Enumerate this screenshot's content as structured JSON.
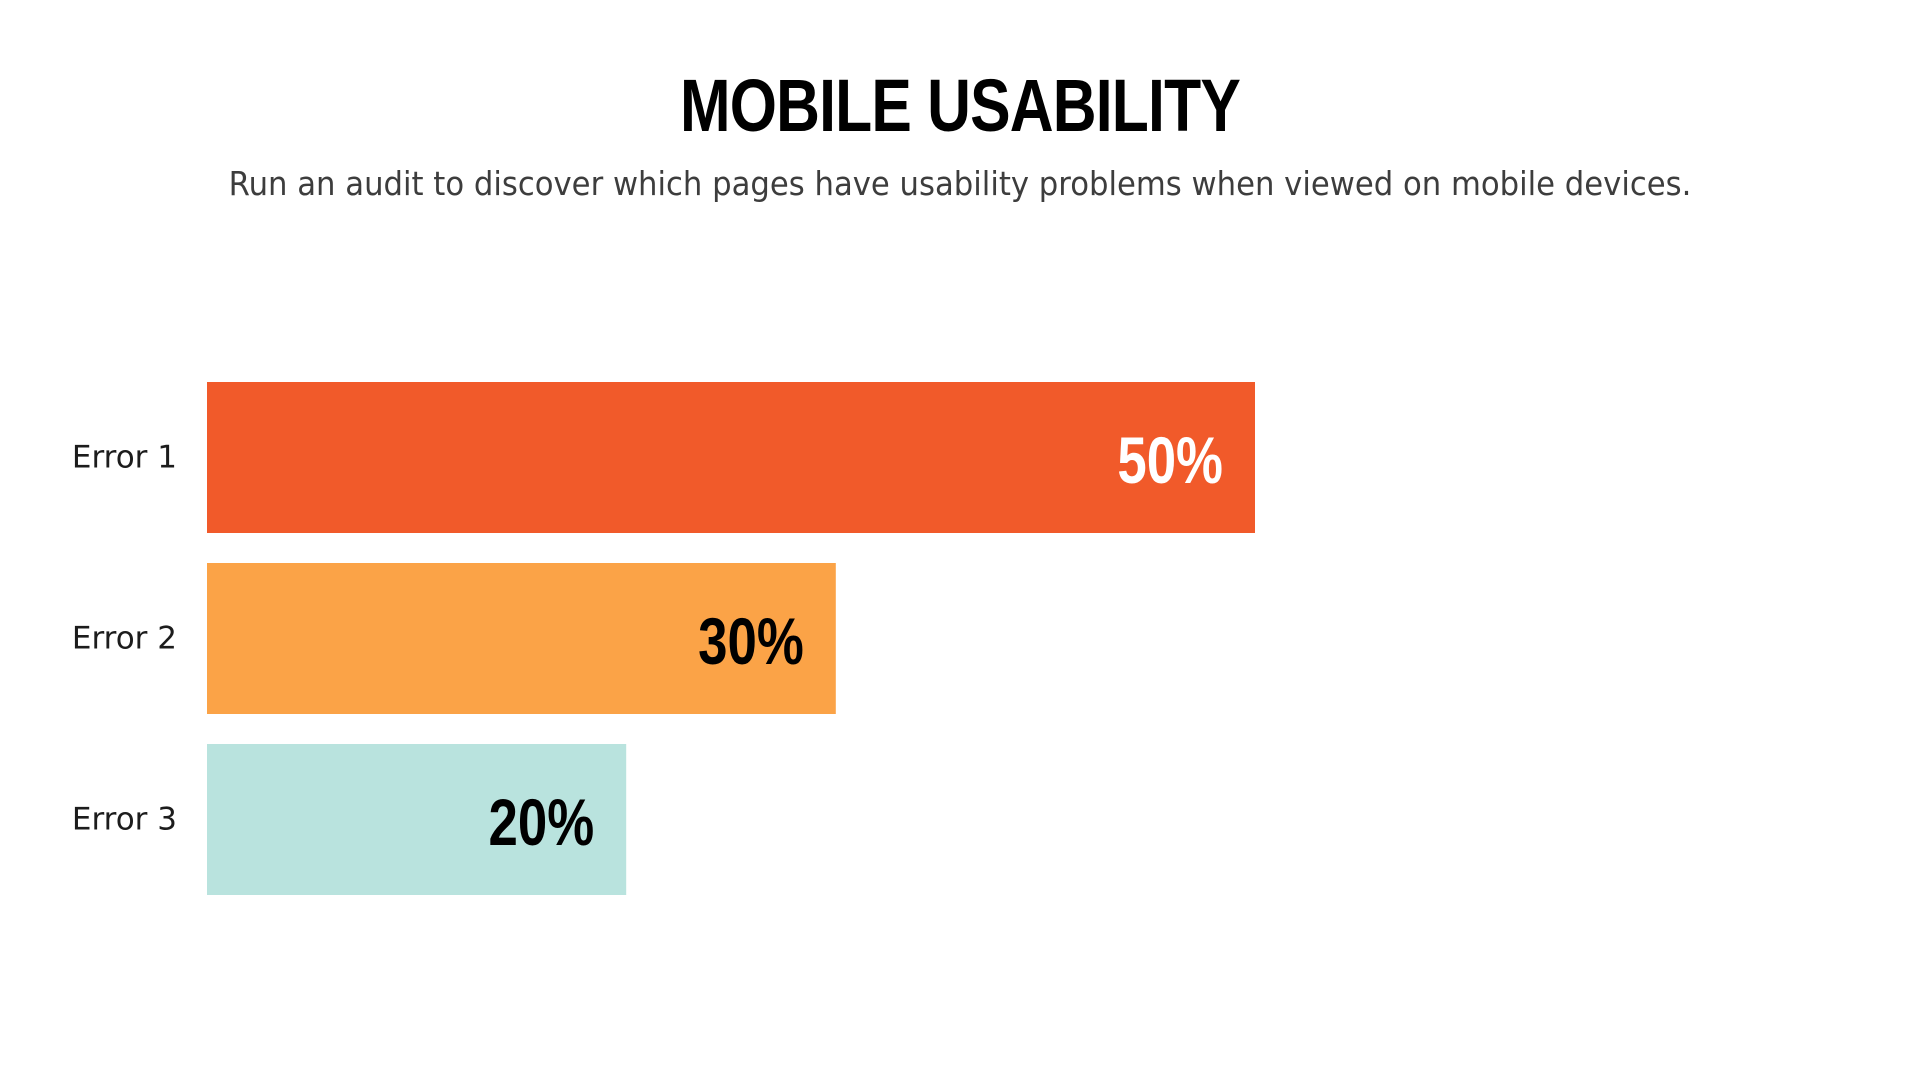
{
  "title": "MOBILE USABILITY",
  "subtitle": "Run an audit to discover which pages have usability problems when viewed on mobile devices.",
  "chart_data": {
    "type": "bar",
    "orientation": "horizontal",
    "title": "MOBILE USABILITY",
    "subtitle": "Run an audit to discover which pages have usability problems when viewed on mobile devices.",
    "categories": [
      "Error 1",
      "Error 2",
      "Error 3"
    ],
    "values": [
      50,
      30,
      20
    ],
    "value_labels": [
      "50%",
      "30%",
      "20%"
    ],
    "unit": "%",
    "colors": [
      "#F15A2A",
      "#FBA347",
      "#B9E3DE"
    ],
    "label_colors": [
      "#FFFFFF",
      "#000000",
      "#000000"
    ],
    "xlim": [
      0,
      100
    ],
    "grid": false,
    "legend": "none"
  }
}
